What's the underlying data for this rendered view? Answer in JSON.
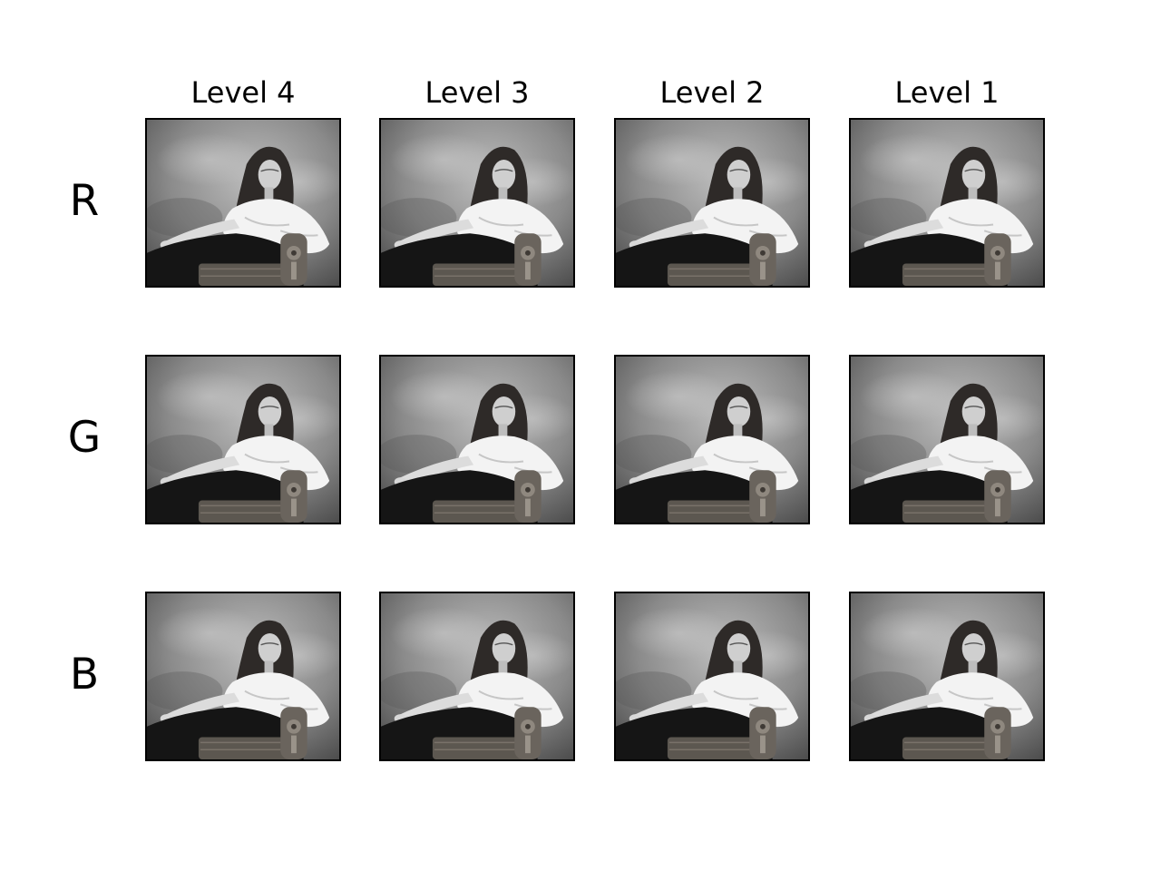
{
  "figure": {
    "column_headers": [
      "Level 4",
      "Level 3",
      "Level 2",
      "Level 1"
    ],
    "row_labels": [
      "R",
      "G",
      "B"
    ],
    "panel_icon": "grayscale-portrait-photo",
    "colors": {
      "background": "#ffffff",
      "frame": "#000000",
      "text": "#000000"
    }
  }
}
